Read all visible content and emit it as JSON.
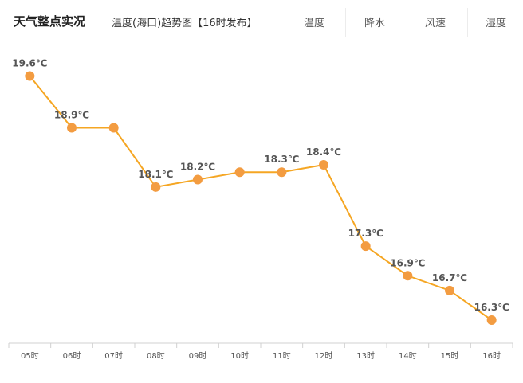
{
  "header": {
    "app_title": "天气整点实况",
    "subtitle": "温度(海口)趋势图【16时发布】",
    "tabs": [
      {
        "label": "温度"
      },
      {
        "label": "降水"
      },
      {
        "label": "风速"
      },
      {
        "label": "湿度"
      }
    ]
  },
  "chart_data": {
    "type": "line",
    "title": "温度(海口)趋势图【16时发布】",
    "x": [
      "05时",
      "06时",
      "07时",
      "08时",
      "09时",
      "10时",
      "11时",
      "12时",
      "13时",
      "14时",
      "15时",
      "16时"
    ],
    "series": [
      {
        "values": [
          19.6,
          18.9,
          18.9,
          18.1,
          18.2,
          18.3,
          18.3,
          18.4,
          17.3,
          16.9,
          16.7,
          16.3
        ],
        "labels": [
          "19.6℃",
          "18.9℃",
          "",
          "18.1℃",
          "18.2℃",
          "",
          "18.3℃",
          "18.4℃",
          "17.3℃",
          "16.9℃",
          "16.7℃",
          "16.3℃"
        ],
        "color": "#f5a623",
        "marker_color": "#f39c41"
      }
    ],
    "grid": false
  }
}
